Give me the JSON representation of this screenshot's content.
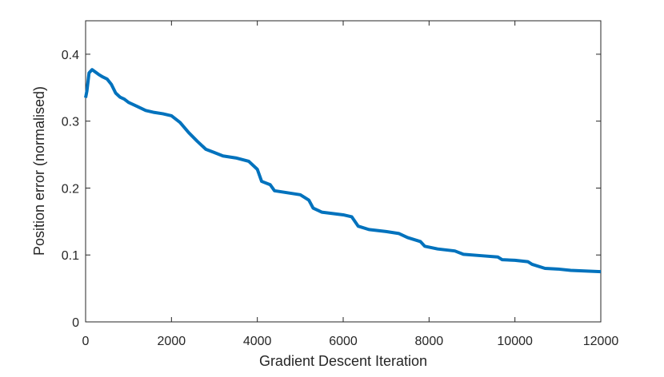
{
  "chart_data": {
    "type": "line",
    "x_label": "Gradient Descent Iteration",
    "y_label": "Position error (normalised)",
    "xlim": [
      0,
      12000
    ],
    "xticks": [
      0,
      2000,
      4000,
      6000,
      8000,
      10000,
      12000
    ],
    "ylim": [
      0,
      0.45
    ],
    "yticks": [
      0,
      0.1,
      0.2,
      0.3,
      0.4
    ],
    "grid": false,
    "series": [
      {
        "color": "#0072bd",
        "x": [
          0,
          30,
          80,
          150,
          300,
          400,
          500,
          600,
          700,
          800,
          900,
          1000,
          1200,
          1400,
          1600,
          1800,
          2000,
          2200,
          2400,
          2600,
          2800,
          3000,
          3200,
          3500,
          3800,
          4000,
          4100,
          4300,
          4400,
          4700,
          5000,
          5200,
          5300,
          5500,
          6000,
          6200,
          6350,
          6600,
          7000,
          7300,
          7500,
          7800,
          7900,
          8200,
          8600,
          8800,
          9200,
          9600,
          9700,
          10000,
          10300,
          10400,
          10700,
          11000,
          11300,
          12000
        ],
        "values": [
          0.335,
          0.345,
          0.372,
          0.377,
          0.37,
          0.366,
          0.363,
          0.355,
          0.342,
          0.336,
          0.333,
          0.328,
          0.322,
          0.316,
          0.313,
          0.311,
          0.308,
          0.298,
          0.283,
          0.27,
          0.258,
          0.253,
          0.248,
          0.245,
          0.24,
          0.228,
          0.21,
          0.205,
          0.196,
          0.193,
          0.19,
          0.182,
          0.17,
          0.164,
          0.16,
          0.157,
          0.143,
          0.138,
          0.135,
          0.132,
          0.126,
          0.12,
          0.113,
          0.109,
          0.106,
          0.101,
          0.099,
          0.097,
          0.093,
          0.092,
          0.09,
          0.086,
          0.08,
          0.079,
          0.077,
          0.075
        ]
      }
    ]
  }
}
